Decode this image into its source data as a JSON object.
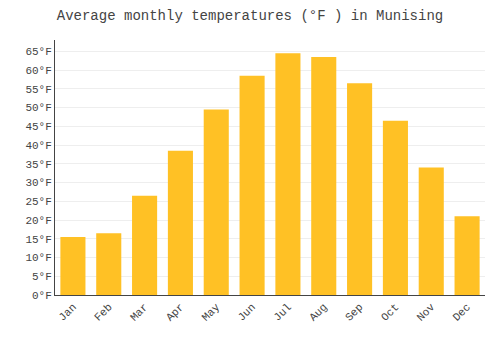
{
  "chart_data": {
    "type": "bar",
    "title": "Average monthly temperatures (°F ) in Munising",
    "categories": [
      "Jan",
      "Feb",
      "Mar",
      "Apr",
      "May",
      "Jun",
      "Jul",
      "Aug",
      "Sep",
      "Oct",
      "Nov",
      "Dec"
    ],
    "values": [
      15.5,
      16.5,
      26.5,
      38.5,
      49.5,
      58.5,
      64.5,
      63.5,
      56.5,
      46.5,
      34.0,
      21.0
    ],
    "color": "#FFC125",
    "ylim": [
      0,
      68
    ],
    "yticks": [
      {
        "value": 0,
        "label": "0°F"
      },
      {
        "value": 5,
        "label": "5°F"
      },
      {
        "value": 10,
        "label": "10°F"
      },
      {
        "value": 15,
        "label": "15°F"
      },
      {
        "value": 20,
        "label": "20°F"
      },
      {
        "value": 25,
        "label": "25°F"
      },
      {
        "value": 30,
        "label": "30°F"
      },
      {
        "value": 35,
        "label": "35°F"
      },
      {
        "value": 40,
        "label": "40°F"
      },
      {
        "value": 45,
        "label": "45°F"
      },
      {
        "value": 50,
        "label": "50°F"
      },
      {
        "value": 55,
        "label": "55°F"
      },
      {
        "value": 60,
        "label": "60°F"
      },
      {
        "value": 65,
        "label": "65°F"
      }
    ],
    "grid": true
  }
}
